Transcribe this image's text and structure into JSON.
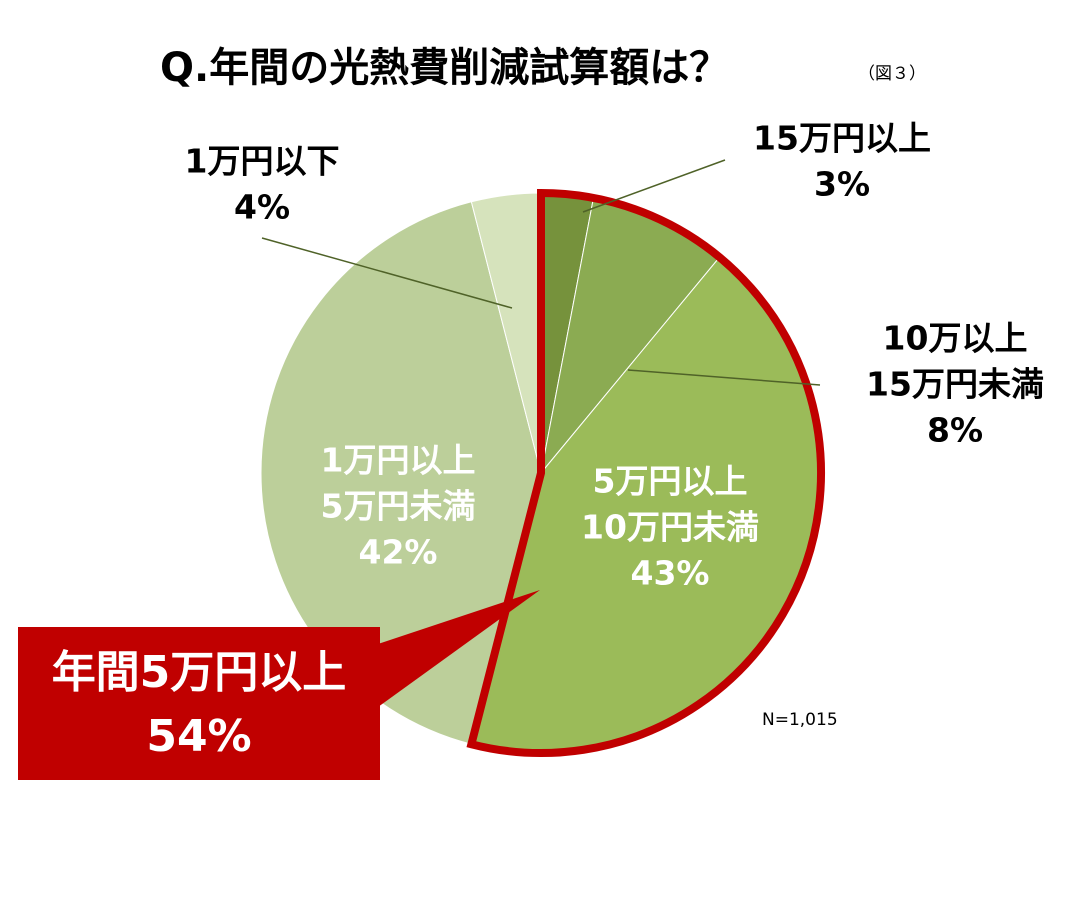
{
  "chart_data": {
    "type": "pie",
    "title": "Q.年間の光熱費削減試算額は？",
    "subtitle": "（図３）",
    "categories": [
      [
        "15万円以上"
      ],
      [
        "10万以上",
        "15万円未満"
      ],
      [
        "5万円以上",
        "10万円未満"
      ],
      [
        "1万円以上",
        "5万円未満"
      ],
      [
        "1万円以下"
      ]
    ],
    "values": [
      3,
      8,
      43,
      42,
      4
    ],
    "value_labels": [
      "3%",
      "8%",
      "43%",
      "42%",
      "4%"
    ],
    "colors": [
      "#76923c",
      "#8bab52",
      "#9bbb59",
      "#bccf9a",
      "#d6e3bc"
    ],
    "highlight": [
      0,
      1,
      2
    ],
    "highlight_color": "#c00000",
    "callout": [
      "年間5万円以上",
      "54%"
    ],
    "note": "N=1,015"
  }
}
